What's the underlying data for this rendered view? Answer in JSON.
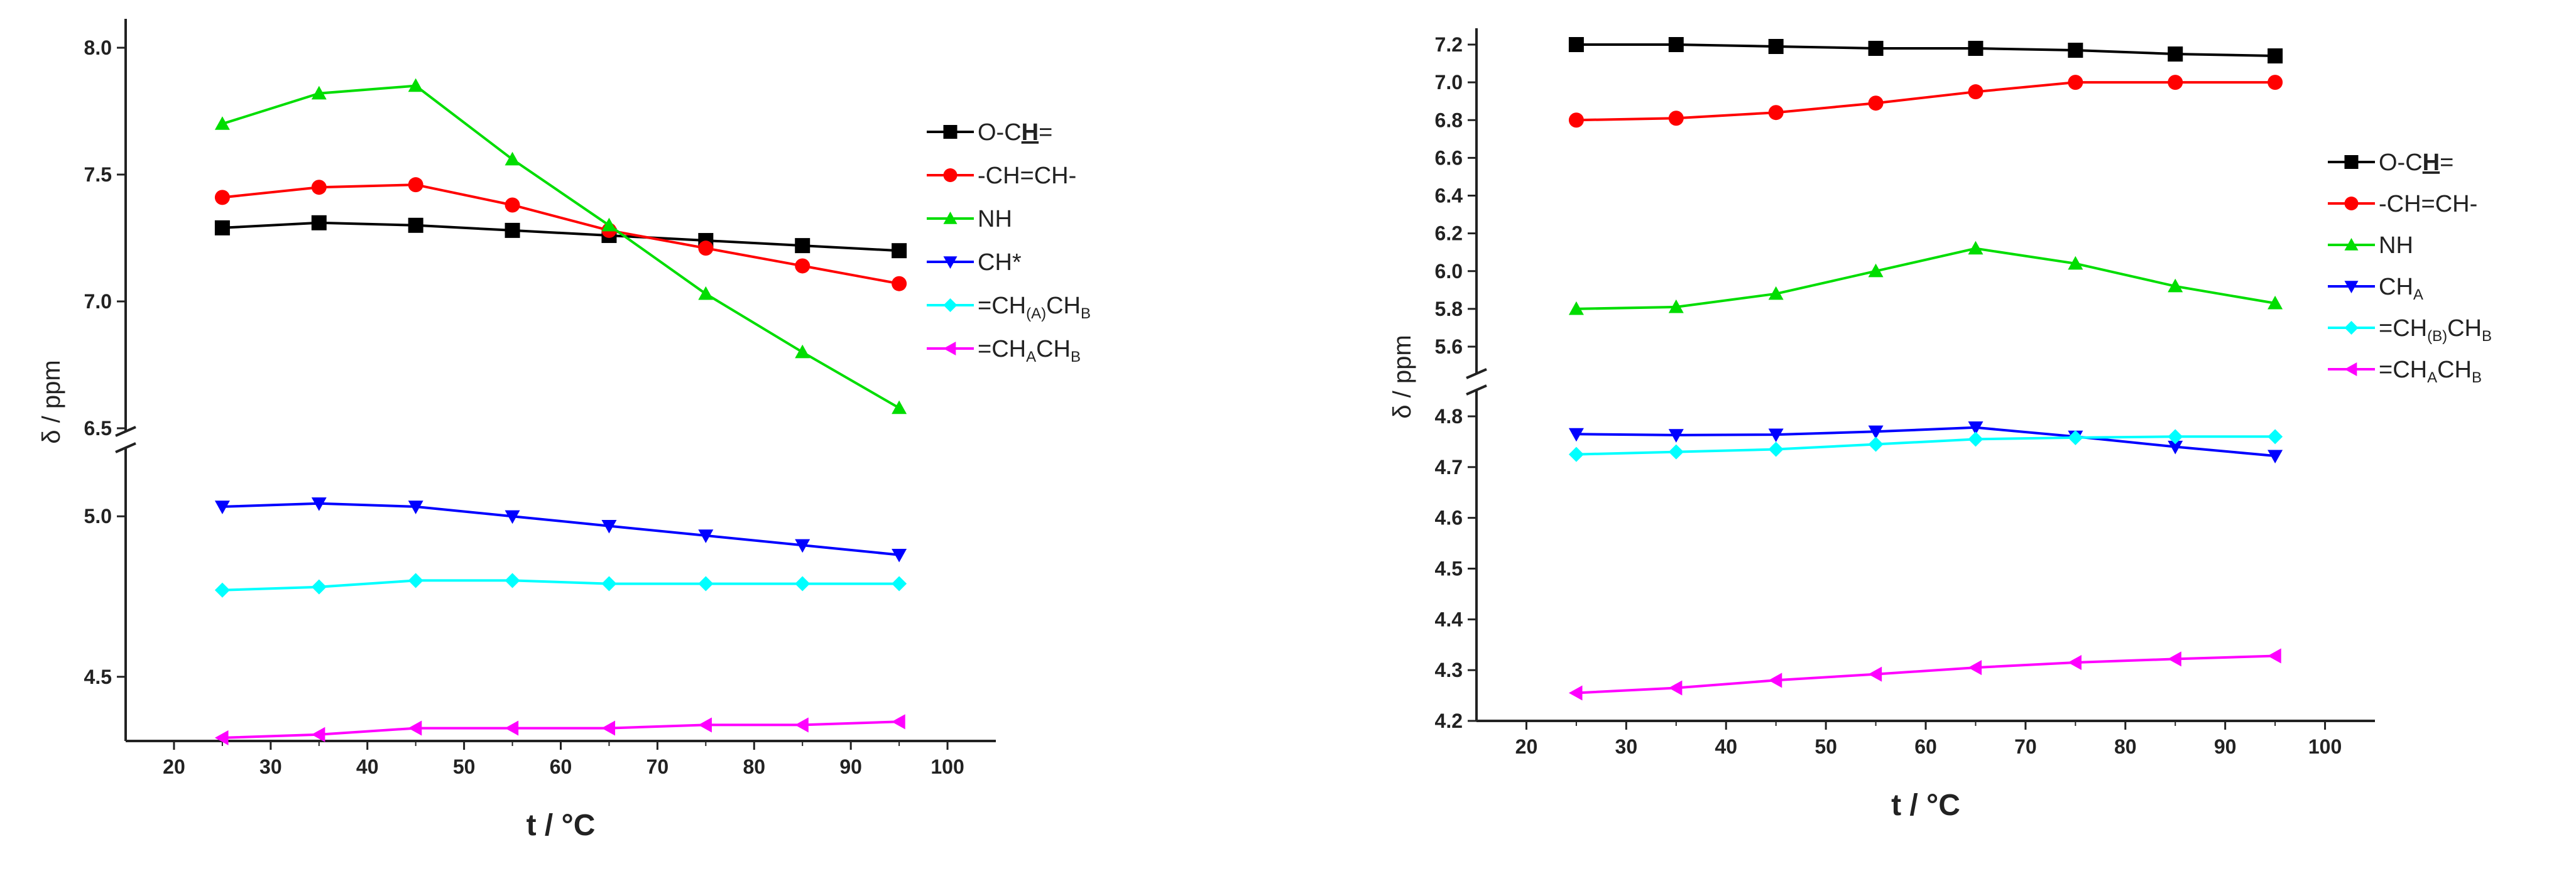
{
  "chart_data": [
    {
      "type": "line",
      "title": "",
      "xlabel": "t / °C",
      "ylabel": "δ / ppm",
      "xlim": [
        15,
        105
      ],
      "x_ticks": [
        20,
        30,
        40,
        50,
        60,
        70,
        80,
        90,
        100
      ],
      "axis_break": {
        "lower_max": 5.2,
        "upper_min": 6.5
      },
      "y_upper": {
        "range": [
          6.5,
          8.0
        ],
        "ticks": [
          6.5,
          7.0,
          7.5,
          8.0
        ],
        "tick_labels": [
          "6.5",
          "7.0",
          "7.5",
          "8.0"
        ]
      },
      "y_lower": {
        "range": [
          4.3,
          5.2
        ],
        "ticks": [
          4.5,
          5.0
        ],
        "tick_labels": [
          "4.5",
          "5.0"
        ]
      },
      "x": [
        25,
        35,
        45,
        55,
        65,
        75,
        85,
        95
      ],
      "series": [
        {
          "name": "O-CH=",
          "marker": "square",
          "color": "#000000",
          "segment": "upper",
          "values": [
            7.29,
            7.31,
            7.3,
            7.28,
            7.26,
            7.24,
            7.22,
            7.2
          ]
        },
        {
          "name": "-CH=CH-",
          "marker": "circle",
          "color": "#ff0000",
          "segment": "upper",
          "values": [
            7.41,
            7.45,
            7.46,
            7.38,
            7.28,
            7.21,
            7.14,
            7.07
          ]
        },
        {
          "name": "NH",
          "marker": "triangle-up",
          "color": "#00dd00",
          "segment": "upper",
          "values": [
            7.7,
            7.82,
            7.85,
            7.56,
            7.3,
            7.03,
            6.8,
            6.58
          ]
        },
        {
          "name": "CH*",
          "marker": "triangle-down",
          "color": "#0000ff",
          "segment": "lower",
          "values": [
            5.03,
            5.04,
            5.03,
            5.0,
            4.97,
            4.94,
            4.91,
            4.88
          ]
        },
        {
          "name": "=CH(A)CHB",
          "marker": "diamond",
          "color": "#00ffff",
          "segment": "lower",
          "values": [
            4.77,
            4.78,
            4.8,
            4.8,
            4.79,
            4.79,
            4.79,
            4.79
          ]
        },
        {
          "name": "=CHACHB",
          "marker": "triangle-left",
          "color": "#ff00ff",
          "segment": "lower",
          "values": [
            4.31,
            4.32,
            4.34,
            4.34,
            4.34,
            4.35,
            4.35,
            4.36
          ]
        }
      ],
      "legend": {
        "placement": "right",
        "entries": [
          {
            "main": "O-C",
            "u": "H",
            "tail": "=",
            "sub": "",
            "main2": "",
            "sub2": ""
          },
          {
            "main": "-CH=CH-",
            "u": "",
            "tail": "",
            "sub": "",
            "main2": "",
            "sub2": ""
          },
          {
            "main": "NH",
            "u": "",
            "tail": "",
            "sub": "",
            "main2": "",
            "sub2": ""
          },
          {
            "main": "CH*",
            "u": "",
            "tail": "",
            "sub": "",
            "main2": "",
            "sub2": ""
          },
          {
            "main": "=CH",
            "u": "",
            "tail": "",
            "sub": "(A)",
            "main2": "CH",
            "sub2": "B"
          },
          {
            "main": "=CH",
            "u": "",
            "tail": "",
            "sub": "A",
            "main2": "CH",
            "sub2": "B"
          }
        ]
      }
    },
    {
      "type": "line",
      "title": "",
      "xlabel": "t / °C",
      "ylabel": "δ / ppm",
      "xlim": [
        15,
        105
      ],
      "x_ticks": [
        20,
        30,
        40,
        50,
        60,
        70,
        80,
        90,
        100
      ],
      "axis_break": {
        "lower_max": 4.8,
        "upper_min": 5.6
      },
      "y_upper": {
        "range": [
          5.6,
          7.2
        ],
        "ticks": [
          5.6,
          5.8,
          6.0,
          6.2,
          6.4,
          6.6,
          6.8,
          7.0,
          7.2
        ],
        "tick_labels": [
          "5.6",
          "5.8",
          "6.0",
          "6.2",
          "6.4",
          "6.6",
          "6.8",
          "7.0",
          "7.2"
        ]
      },
      "y_lower": {
        "range": [
          4.2,
          4.8
        ],
        "ticks": [
          4.2,
          4.3,
          4.4,
          4.5,
          4.6,
          4.7,
          4.8
        ],
        "tick_labels": [
          "4.2",
          "4.3",
          "4.4",
          "4.5",
          "4.6",
          "4.7",
          "4.8"
        ]
      },
      "x": [
        25,
        35,
        45,
        55,
        65,
        75,
        85,
        95
      ],
      "series": [
        {
          "name": "O-CH=",
          "marker": "square",
          "color": "#000000",
          "segment": "upper",
          "values": [
            7.2,
            7.2,
            7.19,
            7.18,
            7.18,
            7.17,
            7.15,
            7.14
          ]
        },
        {
          "name": "-CH=CH-",
          "marker": "circle",
          "color": "#ff0000",
          "segment": "upper",
          "values": [
            6.8,
            6.81,
            6.84,
            6.89,
            6.95,
            7.0,
            7.0,
            7.0
          ]
        },
        {
          "name": "NH",
          "marker": "triangle-up",
          "color": "#00dd00",
          "segment": "upper",
          "values": [
            5.8,
            5.81,
            5.88,
            6.0,
            6.12,
            6.04,
            5.92,
            5.83
          ]
        },
        {
          "name": "CHA",
          "marker": "triangle-down",
          "color": "#0000ff",
          "segment": "lower",
          "values": [
            4.765,
            4.763,
            4.764,
            4.77,
            4.778,
            4.76,
            4.74,
            4.722
          ]
        },
        {
          "name": "=CH(B)CHB",
          "marker": "diamond",
          "color": "#00ffff",
          "segment": "lower",
          "values": [
            4.725,
            4.73,
            4.735,
            4.745,
            4.755,
            4.758,
            4.76,
            4.76
          ]
        },
        {
          "name": "=CHACHB",
          "marker": "triangle-left",
          "color": "#ff00ff",
          "segment": "lower",
          "values": [
            4.255,
            4.265,
            4.28,
            4.292,
            4.305,
            4.315,
            4.322,
            4.328
          ]
        }
      ],
      "legend": {
        "placement": "right",
        "entries": [
          {
            "main": "O-C",
            "u": "H",
            "tail": "=",
            "sub": "",
            "main2": "",
            "sub2": ""
          },
          {
            "main": "-CH=CH-",
            "u": "",
            "tail": "",
            "sub": "",
            "main2": "",
            "sub2": ""
          },
          {
            "main": "NH",
            "u": "",
            "tail": "",
            "sub": "",
            "main2": "",
            "sub2": ""
          },
          {
            "main": "CH",
            "u": "",
            "tail": "",
            "sub": "A",
            "main2": "",
            "sub2": ""
          },
          {
            "main": "=CH",
            "u": "",
            "tail": "",
            "sub": "(B)",
            "main2": "CH",
            "sub2": "B"
          },
          {
            "main": "=CH",
            "u": "",
            "tail": "",
            "sub": "A",
            "main2": "CH",
            "sub2": "B"
          }
        ]
      }
    }
  ]
}
